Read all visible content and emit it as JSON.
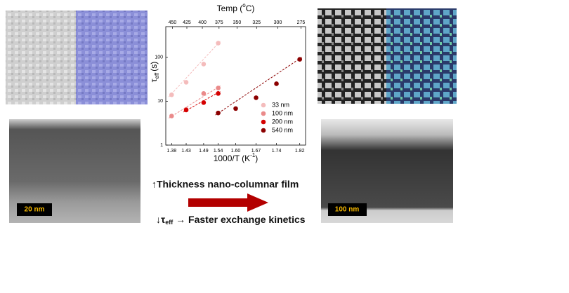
{
  "chart_data": {
    "type": "scatter",
    "top_title": {
      "text": "Temp (",
      "superscript": "o",
      "close": "C)"
    },
    "xlabel": {
      "text": "1000/T (K",
      "superscript": "-1",
      "close": ")"
    },
    "ylabel": {
      "symbol": "τ",
      "subscript": "eff",
      "unit": "(s)"
    },
    "xlim": [
      1.36,
      1.84
    ],
    "xticks": [
      1.38,
      1.43,
      1.49,
      1.54,
      {
        "value": 1.6,
        "label": "1.60"
      },
      1.67,
      1.74,
      1.82
    ],
    "x2ticks": [
      450,
      425,
      400,
      375,
      350,
      325,
      300,
      275
    ],
    "ylim": [
      1,
      500
    ],
    "log_y": true,
    "yticks": [
      1,
      10,
      100
    ],
    "legend": "right",
    "fit_lines": true,
    "series": [
      {
        "name": "33 nm",
        "color": "#f4bcbc",
        "x": [
          1.38,
          1.43,
          1.49,
          1.54
        ],
        "values": [
          14,
          27,
          70,
          210
        ]
      },
      {
        "name": "100 nm",
        "color": "#ea8a8a",
        "x": [
          1.38,
          1.43,
          1.49,
          1.54
        ],
        "values": [
          4.6,
          6.5,
          15,
          20
        ]
      },
      {
        "name": "200 nm",
        "color": "#d50000",
        "x": [
          1.43,
          1.49,
          1.54
        ],
        "values": [
          6.3,
          9.3,
          15
        ]
      },
      {
        "name": "540 nm",
        "color": "#8b0000",
        "x": [
          1.54,
          1.6,
          1.67,
          1.74,
          1.82
        ],
        "values": [
          5.4,
          6.8,
          12,
          25,
          90
        ]
      }
    ]
  },
  "scale_bars": {
    "left": "20 nm",
    "right": "100 nm"
  },
  "caption": {
    "line1": "↑Thickness nano-columnar film",
    "line2_symbol": "↓τ",
    "line2_subscript": "eff",
    "line2_rest": " → Faster exchange kinetics"
  }
}
